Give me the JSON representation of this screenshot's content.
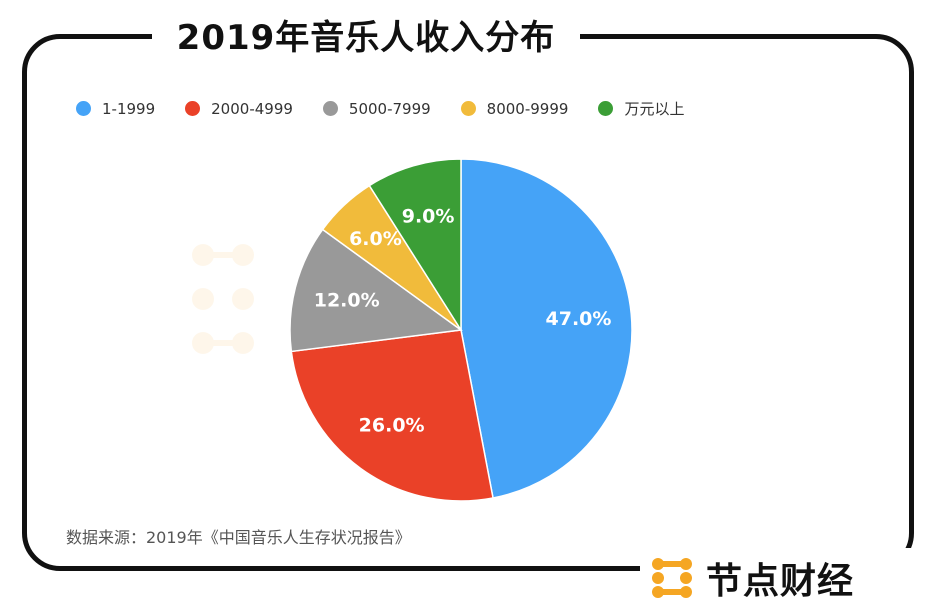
{
  "title": "2019年音乐人收入分布",
  "source": "数据来源：2019年《中国音乐人生存状况报告》",
  "brand": {
    "name": "节点财经",
    "watermark": "财经"
  },
  "colors": {
    "accent_brand": "#F5A623",
    "frame": "#111111"
  },
  "chart_data": {
    "type": "pie",
    "title": "2019年音乐人收入分布",
    "legend_position": "top",
    "start_angle_deg": 0,
    "direction": "clockwise",
    "slices": [
      {
        "label": "1-1999",
        "value": 47.0,
        "display": "47.0%",
        "color": "#45A3F7"
      },
      {
        "label": "2000-4999",
        "value": 26.0,
        "display": "26.0%",
        "color": "#EA4128"
      },
      {
        "label": "5000-7999",
        "value": 12.0,
        "display": "12.0%",
        "color": "#999999"
      },
      {
        "label": "8000-9999",
        "value": 6.0,
        "display": "6.0%",
        "color": "#F1BB3B"
      },
      {
        "label": "万元以上",
        "value": 9.0,
        "display": "9.0%",
        "color": "#3B9E36"
      }
    ]
  }
}
